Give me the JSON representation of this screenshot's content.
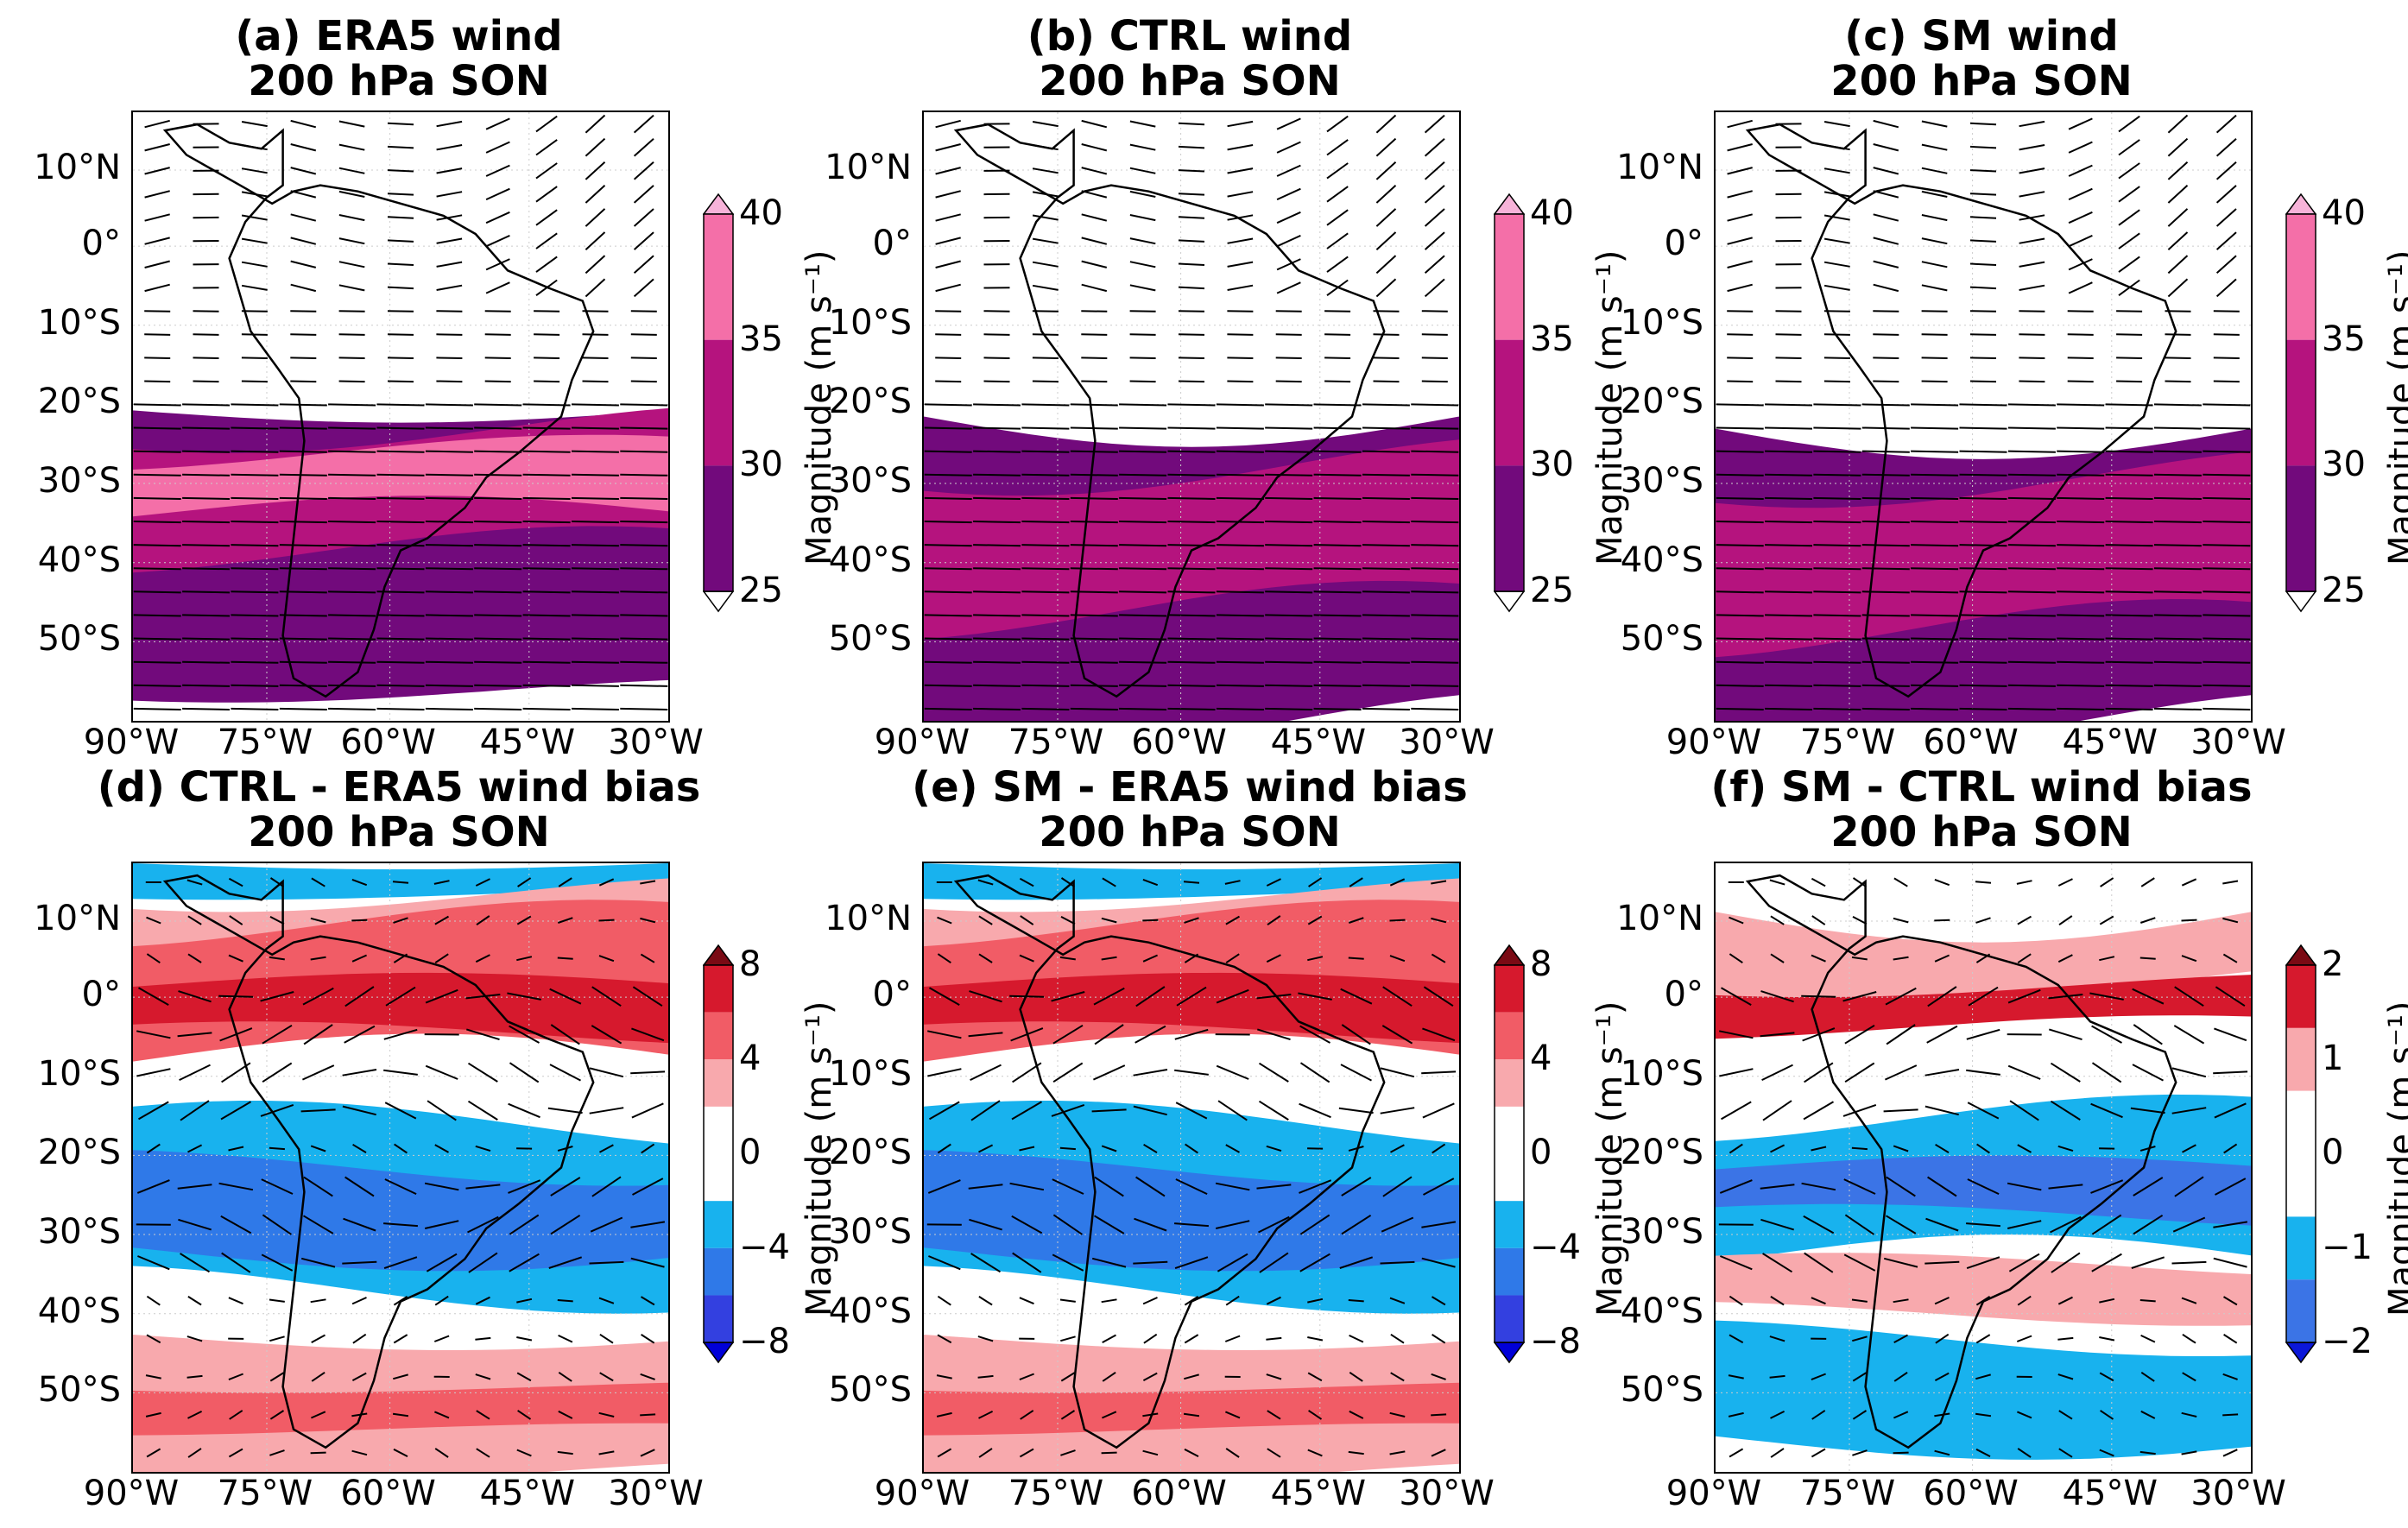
{
  "panels": [
    {
      "id": "a",
      "title_line1": "(a) ERA5 wind",
      "title_line2": "200 hPa SON",
      "type": "magnitude"
    },
    {
      "id": "b",
      "title_line1": "(b) CTRL wind",
      "title_line2": "200 hPa SON",
      "type": "magnitude"
    },
    {
      "id": "c",
      "title_line1": "(c) SM wind",
      "title_line2": "200 hPa SON",
      "type": "magnitude"
    },
    {
      "id": "d",
      "title_line1": "(d) CTRL - ERA5 wind bias",
      "title_line2": "200 hPa SON",
      "type": "bias8"
    },
    {
      "id": "e",
      "title_line1": "(e) SM - ERA5 wind bias",
      "title_line2": "200 hPa SON",
      "type": "bias8"
    },
    {
      "id": "f",
      "title_line1": "(f) SM - CTRL wind bias",
      "title_line2": "200 hPa SON",
      "type": "bias2"
    }
  ],
  "lat_labels": [
    "10°N",
    "0°",
    "10°S",
    "20°S",
    "30°S",
    "40°S",
    "50°S"
  ],
  "lon_labels": [
    "90°W",
    "75°W",
    "60°W",
    "45°W",
    "30°W"
  ],
  "colorbar_label": "Magnitude (m s⁻¹)",
  "colorbars": {
    "magnitude": {
      "ticks": [
        "40",
        "35",
        "30",
        "25"
      ],
      "colors": [
        "#f7b3d9",
        "#f46fa8",
        "#b5137e",
        "#720a7c"
      ]
    },
    "bias8": {
      "ticks": [
        "8",
        "4",
        "0",
        "−4",
        "−8"
      ],
      "colors": [
        "#7a0a14",
        "#d6192d",
        "#f15c66",
        "#f8a9ad",
        "#ffffff",
        "#ffffff",
        "#18b2ee",
        "#2f79e8",
        "#3340e0",
        "#0000d8"
      ]
    },
    "bias2": {
      "ticks": [
        "2",
        "1",
        "0",
        "−1",
        "−2"
      ],
      "colors": [
        "#7a0a14",
        "#d6192d",
        "#f8a9ad",
        "#ffffff",
        "#ffffff",
        "#18b2ee",
        "#3b74e6",
        "#0b17d9"
      ]
    }
  }
}
